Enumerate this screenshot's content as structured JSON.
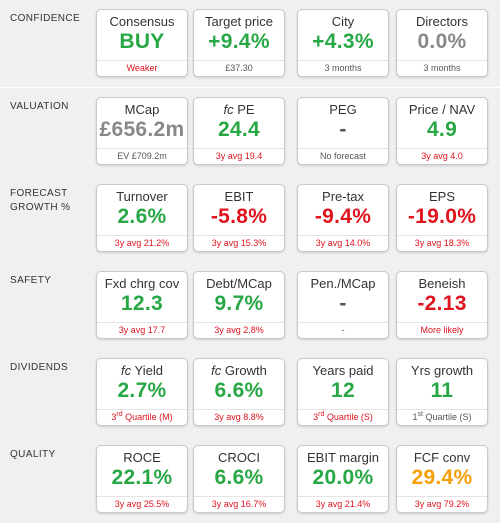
{
  "colors": {
    "green": "#28a745",
    "red": "#e0141e",
    "orange": "#f5a00a",
    "gray": "#888888",
    "sub_gray": "#555555"
  },
  "sections": [
    {
      "label": "CONFIDENCE",
      "cards": [
        {
          "title": "Consensus",
          "value": "BUY",
          "value_color": "green",
          "sub": "Weaker",
          "sub_color": "red"
        },
        {
          "title": "Target price",
          "value": "+9.4%",
          "value_color": "green",
          "sub": "£37.30",
          "sub_color": "sub_gray"
        },
        {
          "title": "City",
          "value": "+4.3%",
          "value_color": "green",
          "sub": "3 months",
          "sub_color": "sub_gray"
        },
        {
          "title": "Directors",
          "value": "0.0%",
          "value_color": "gray",
          "sub": "3 months",
          "sub_color": "sub_gray"
        }
      ]
    },
    {
      "label": "VALUATION",
      "cards": [
        {
          "title": "MCap",
          "value": "£656.2m",
          "value_color": "gray",
          "sub": "EV £709.2m",
          "sub_color": "sub_gray"
        },
        {
          "title_prefix": "fc",
          "title": " PE",
          "value": "24.4",
          "value_color": "green",
          "sub": "3y avg 19.4",
          "sub_color": "red"
        },
        {
          "title": "PEG",
          "value": "-",
          "value_color": "sub_gray",
          "sub": "No forecast",
          "sub_color": "sub_gray"
        },
        {
          "title": "Price / NAV",
          "value": "4.9",
          "value_color": "green",
          "sub": "3y avg 4.0",
          "sub_color": "red"
        }
      ]
    },
    {
      "label": "FORECAST\nGROWTH %",
      "cards": [
        {
          "title": "Turnover",
          "value": "2.6%",
          "value_color": "green",
          "sub": "3y avg 21.2%",
          "sub_color": "red"
        },
        {
          "title": "EBIT",
          "value": "-5.8%",
          "value_color": "red",
          "sub": "3y avg 15.3%",
          "sub_color": "red"
        },
        {
          "title": "Pre-tax",
          "value": "-9.4%",
          "value_color": "red",
          "sub": "3y avg 14.0%",
          "sub_color": "red"
        },
        {
          "title": "EPS",
          "value": "-19.0%",
          "value_color": "red",
          "sub": "3y avg 18.3%",
          "sub_color": "red"
        }
      ]
    },
    {
      "label": "SAFETY",
      "cards": [
        {
          "title": "Fxd chrg cov",
          "value": "12.3",
          "value_color": "green",
          "sub": "3y avg 17.7",
          "sub_color": "red"
        },
        {
          "title": "Debt/MCap",
          "value": "9.7%",
          "value_color": "green",
          "sub": "3y avg 2.8%",
          "sub_color": "red"
        },
        {
          "title": "Pen./MCap",
          "value": "-",
          "value_color": "sub_gray",
          "sub": "-",
          "sub_color": "sub_gray"
        },
        {
          "title": "Beneish",
          "value": "-2.13",
          "value_color": "red",
          "sub": "More likely",
          "sub_color": "red"
        }
      ]
    },
    {
      "label": "DIVIDENDS",
      "cards": [
        {
          "title_prefix": "fc",
          "title": " Yield",
          "value": "2.7%",
          "value_color": "green",
          "sub_ord": "3",
          "sub_sup": "rd",
          "sub": " Quartile (M)",
          "sub_color": "red"
        },
        {
          "title_prefix": "fc",
          "title": " Growth",
          "value": "6.6%",
          "value_color": "green",
          "sub": "3y avg 8.8%",
          "sub_color": "red"
        },
        {
          "title": "Years paid",
          "value": "12",
          "value_color": "green",
          "sub_ord": "3",
          "sub_sup": "rd",
          "sub": " Quartile (S)",
          "sub_color": "red"
        },
        {
          "title": "Yrs growth",
          "value": "11",
          "value_color": "green",
          "sub_ord": "1",
          "sub_sup": "st",
          "sub": " Quartile (S)",
          "sub_color": "sub_gray"
        }
      ]
    },
    {
      "label": "QUALITY",
      "cards": [
        {
          "title": "ROCE",
          "value": "22.1%",
          "value_color": "green",
          "sub": "3y avg 25.5%",
          "sub_color": "red"
        },
        {
          "title": "CROCI",
          "value": "6.6%",
          "value_color": "green",
          "sub": "3y avg 16.7%",
          "sub_color": "red"
        },
        {
          "title": "EBIT margin",
          "value": "20.0%",
          "value_color": "green",
          "sub": "3y avg 21.4%",
          "sub_color": "red"
        },
        {
          "title": "FCF conv",
          "value": "29.4%",
          "value_color": "orange",
          "sub": "3y avg 79.2%",
          "sub_color": "red"
        }
      ]
    }
  ]
}
